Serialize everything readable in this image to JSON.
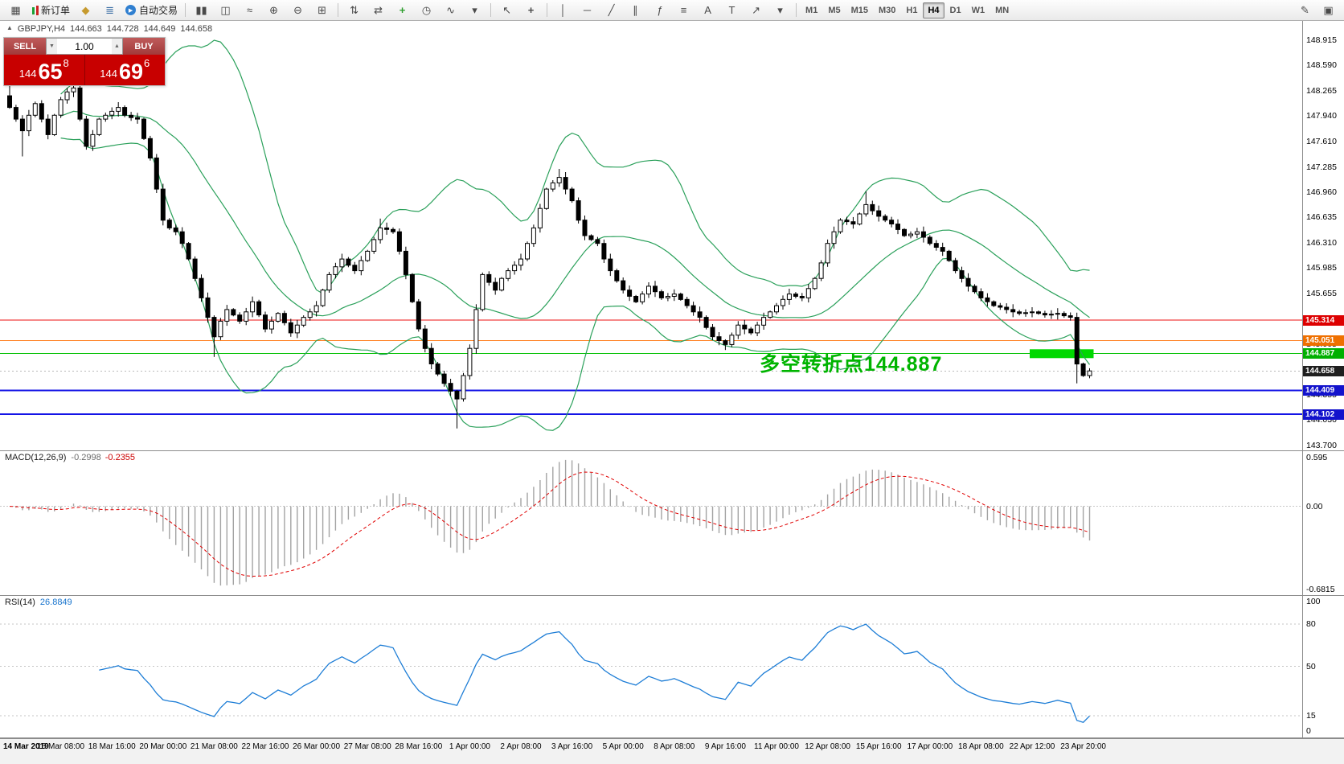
{
  "toolbar": {
    "new_order_label": "新订单",
    "autotrading_label": "自动交易",
    "timeframes": [
      "M1",
      "M5",
      "M15",
      "M30",
      "H1",
      "H4",
      "D1",
      "W1",
      "MN"
    ],
    "active_timeframe": "H4"
  },
  "symbol_line": {
    "collapse_icon": "▲",
    "symbol": "GBPJPY,H4",
    "open": "144.663",
    "high": "144.728",
    "low": "144.649",
    "close": "144.658"
  },
  "one_click": {
    "sell_label": "SELL",
    "buy_label": "BUY",
    "volume": "1.00",
    "sell_prefix": "144",
    "sell_big": "65",
    "sell_sup": "8",
    "buy_prefix": "144",
    "buy_big": "69",
    "buy_sup": "6"
  },
  "annotation": {
    "text": "多空转折点144.887",
    "color": "#00b400"
  },
  "macd": {
    "name": "MACD(12,26,9)",
    "value_main": "-0.2998",
    "value_signal": "-0.2355",
    "scale_top": "0.595",
    "scale_zero": "0.00",
    "scale_bottom": "-0.6815"
  },
  "rsi": {
    "name": "RSI(14)",
    "value": "26.8849",
    "scale_top": "100",
    "levels_labels": [
      "80",
      "50",
      "15"
    ],
    "scale_bottom": "0"
  },
  "chart_data": {
    "type": "candlestick",
    "symbol": "GBPJPY",
    "timeframe": "H4",
    "title": "GBPJPY,H4",
    "ohlc_current": {
      "open": 144.663,
      "high": 144.728,
      "low": 144.649,
      "close": 144.658
    },
    "ylim": [
      143.7,
      149.16
    ],
    "price_axis_labels": [
      "148.915",
      "148.590",
      "148.265",
      "147.940",
      "147.610",
      "147.285",
      "146.960",
      "146.635",
      "146.310",
      "145.985",
      "145.655",
      "145.330",
      "145.005",
      "144.680",
      "144.355",
      "144.030",
      "143.700"
    ],
    "time_labels": [
      "14 Mar 2019",
      "15 Mar 08:00",
      "18 Mar 16:00",
      "20 Mar 00:00",
      "21 Mar 08:00",
      "22 Mar 16:00",
      "26 Mar 00:00",
      "27 Mar 08:00",
      "28 Mar 16:00",
      "1 Apr 00:00",
      "2 Apr 08:00",
      "3 Apr 16:00",
      "5 Apr 00:00",
      "8 Apr 08:00",
      "9 Apr 16:00",
      "11 Apr 00:00",
      "12 Apr 08:00",
      "15 Apr 16:00",
      "17 Apr 00:00",
      "18 Apr 08:00",
      "22 Apr 12:00",
      "23 Apr 20:00"
    ],
    "bars_per_label": 8,
    "first_open": 148.2,
    "closes": [
      148.05,
      147.9,
      147.75,
      147.95,
      148.1,
      147.9,
      147.7,
      147.95,
      148.15,
      148.25,
      148.3,
      147.9,
      147.55,
      147.7,
      147.9,
      147.95,
      148.0,
      148.05,
      147.95,
      147.92,
      147.9,
      147.65,
      147.4,
      147.0,
      146.6,
      146.5,
      146.45,
      146.3,
      146.1,
      145.85,
      145.6,
      145.35,
      145.1,
      145.3,
      145.45,
      145.38,
      145.3,
      145.42,
      145.55,
      145.38,
      145.2,
      145.3,
      145.4,
      145.28,
      145.15,
      145.25,
      145.35,
      145.42,
      145.5,
      145.7,
      145.9,
      146.0,
      146.1,
      146.02,
      145.95,
      146.08,
      146.2,
      146.35,
      146.5,
      146.48,
      146.45,
      146.2,
      145.9,
      145.55,
      145.2,
      144.95,
      144.75,
      144.62,
      144.5,
      144.4,
      144.3,
      144.6,
      144.95,
      145.45,
      145.9,
      145.8,
      145.7,
      145.85,
      145.95,
      146.02,
      146.1,
      146.3,
      146.5,
      146.75,
      147.0,
      147.08,
      147.15,
      147.0,
      146.85,
      146.6,
      146.4,
      146.35,
      146.3,
      146.1,
      145.95,
      145.82,
      145.7,
      145.62,
      145.55,
      145.65,
      145.75,
      145.68,
      145.6,
      145.62,
      145.65,
      145.58,
      145.5,
      145.42,
      145.35,
      145.22,
      145.1,
      145.05,
      145.0,
      145.12,
      145.25,
      145.2,
      145.15,
      145.25,
      145.35,
      145.42,
      145.5,
      145.58,
      145.65,
      145.62,
      145.6,
      145.72,
      145.85,
      146.05,
      146.3,
      146.45,
      146.6,
      146.58,
      146.55,
      146.68,
      146.8,
      146.72,
      146.65,
      146.6,
      146.55,
      146.48,
      146.4,
      146.42,
      146.45,
      146.38,
      146.3,
      146.25,
      146.2,
      146.08,
      145.95,
      145.85,
      145.75,
      145.68,
      145.6,
      145.55,
      145.5,
      145.48,
      145.45,
      145.42,
      145.4,
      145.41,
      145.42,
      145.4,
      145.38,
      145.39,
      145.4,
      145.37,
      145.35,
      144.75,
      144.6,
      144.66
    ],
    "special_highs": {
      "0": 148.35,
      "10": 148.52,
      "58": 146.62,
      "86": 147.26,
      "134": 146.97
    },
    "special_lows": {
      "2": 147.42,
      "32": 144.84,
      "70": 143.92,
      "112": 144.93,
      "167": 144.5
    },
    "indicators": {
      "bollinger": {
        "period": 20,
        "deviation": 2
      },
      "macd": [
        12,
        26,
        9
      ],
      "rsi": 14
    },
    "hlines": [
      {
        "value": "145.314",
        "color": "#ee1111",
        "tag_bg": "#dd0000",
        "width": 1
      },
      {
        "value": "145.051",
        "color": "#ff7f1f",
        "tag_bg": "#ef7000",
        "width": 1
      },
      {
        "value": "144.887",
        "color": "#00c000",
        "tag_bg": "#00b000",
        "width": 1
      },
      {
        "value": "144.409",
        "color": "#1414e6",
        "tag_bg": "#1212cc",
        "width": 2
      },
      {
        "value": "144.102",
        "color": "#1414e6",
        "tag_bg": "#1212cc",
        "width": 2
      }
    ],
    "current_price_tag": {
      "value": "144.658",
      "tag_bg": "#1f1f1f"
    },
    "highlight_rect": {
      "price": 144.887,
      "from_bar": 160,
      "to_bar": 169,
      "color": "#00d800"
    }
  }
}
